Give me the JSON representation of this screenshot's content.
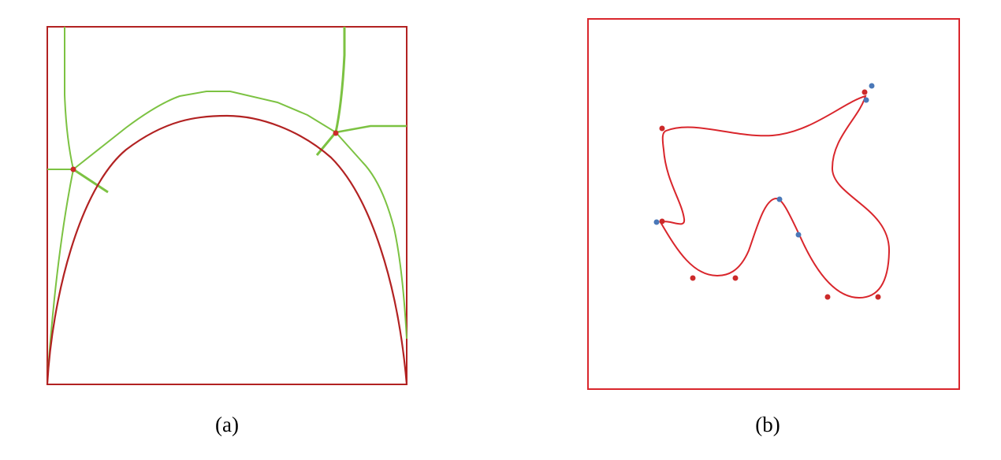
{
  "figure": {
    "panels": [
      {
        "id": "a",
        "caption": "(a)",
        "description_colors": {
          "frame": "#b22222",
          "curve": "#b22222",
          "offsets": "#7cc242",
          "points": "#cc2a2a"
        }
      },
      {
        "id": "b",
        "caption": "(b)",
        "description_colors": {
          "frame": "#d9262c",
          "curve": "#d9262c",
          "red_points": "#cc2a2a",
          "blue_points": "#4a78b8"
        }
      }
    ]
  }
}
